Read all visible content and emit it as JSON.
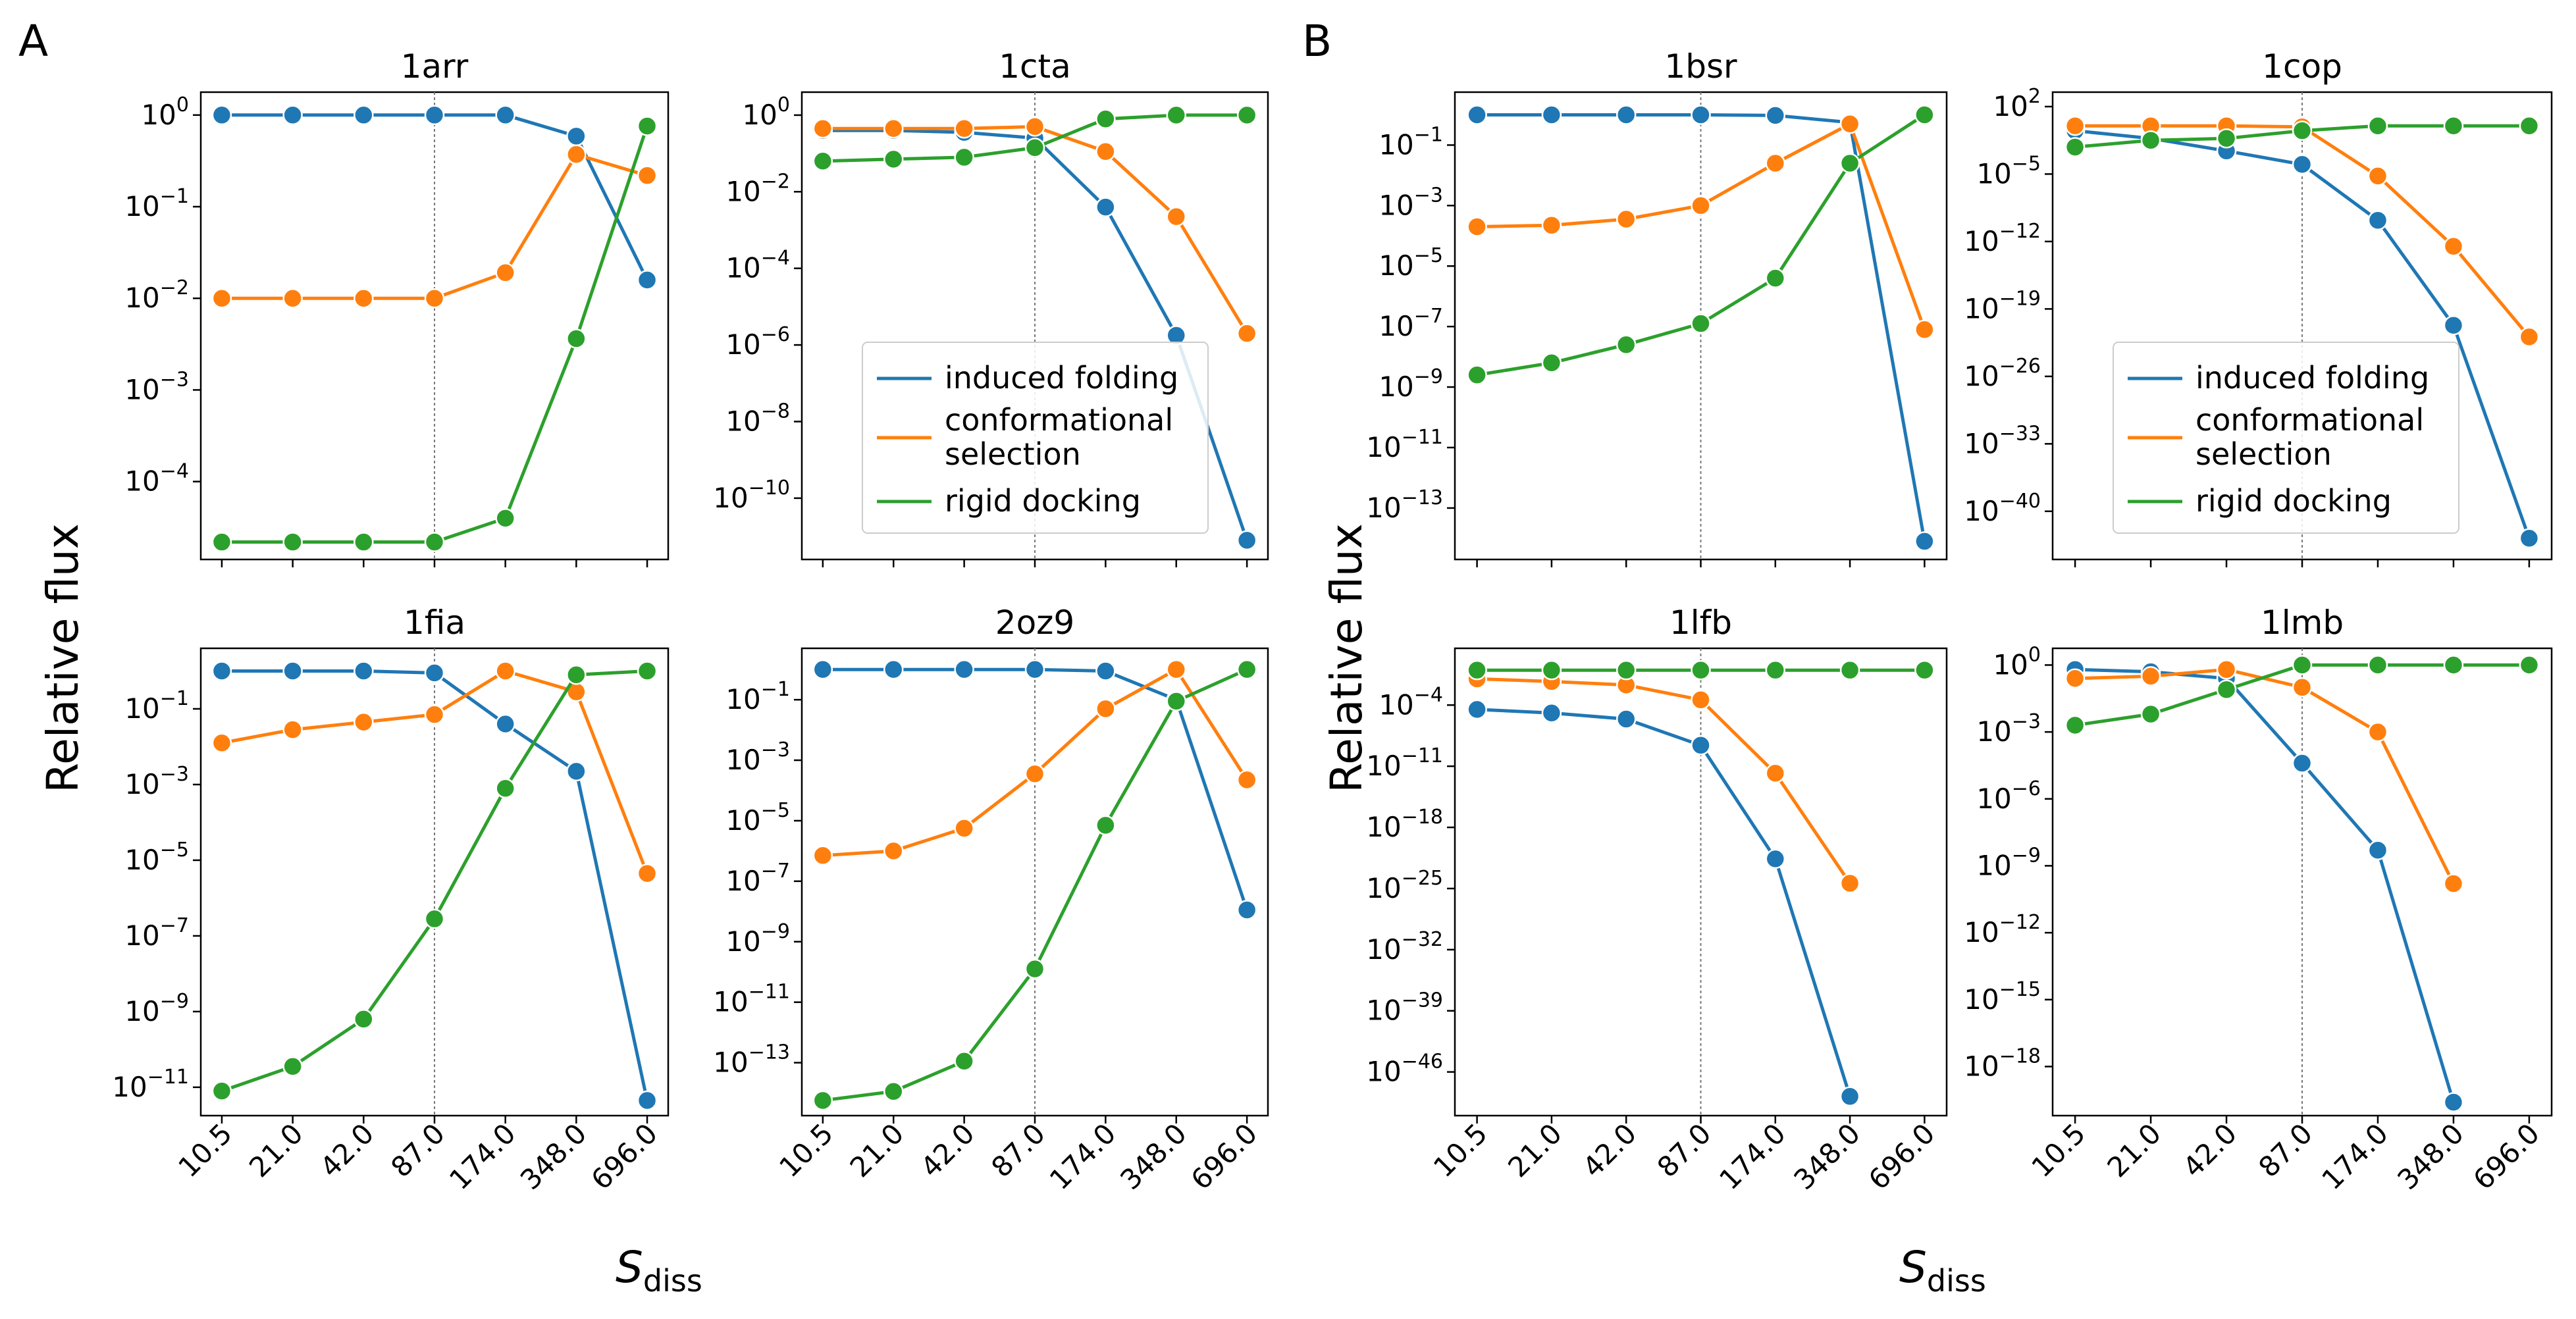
{
  "figure": {
    "panel_labels": [
      "A",
      "B"
    ],
    "ylabel": "Relative flux",
    "xlabel_main": "S",
    "xlabel_sub": "diss",
    "x_ticks": [
      "10.5",
      "21.0",
      "42.0",
      "87.0",
      "174.0",
      "348.0",
      "696.0"
    ],
    "colors": {
      "induced folding": "#1f77b4",
      "conformational selection": "#ff7f0e",
      "rigid docking": "#2ca02c"
    }
  },
  "chart_data": [
    {
      "type": "line",
      "title": "1arr",
      "yscale": "log",
      "ylim_log10": [
        -4.85,
        0.25
      ],
      "yticks_log10": [
        -4,
        -3,
        -2,
        -1,
        0
      ],
      "reference_line_x": "87.0",
      "x": [
        "10.5",
        "21.0",
        "42.0",
        "87.0",
        "174.0",
        "348.0",
        "696.0"
      ],
      "series": [
        {
          "name": "induced folding",
          "log10_values": [
            0,
            0,
            0,
            0,
            0,
            -0.23,
            -1.8
          ]
        },
        {
          "name": "conformational selection",
          "log10_values": [
            -2,
            -2,
            -2,
            -2,
            -1.72,
            -0.43,
            -0.66
          ]
        },
        {
          "name": "rigid docking",
          "log10_values": [
            -4.66,
            -4.66,
            -4.66,
            -4.66,
            -4.4,
            -2.44,
            -0.12
          ]
        }
      ]
    },
    {
      "type": "line",
      "title": "1cta",
      "yscale": "log",
      "ylim_log10": [
        -11.6,
        0.6
      ],
      "yticks_log10": [
        -10,
        -8,
        -6,
        -4,
        -2,
        0
      ],
      "reference_line_x": "87.0",
      "legend": {
        "position": "lower-left",
        "entries": [
          "induced folding",
          "conformational\nselection",
          "rigid docking"
        ]
      },
      "x": [
        "10.5",
        "21.0",
        "42.0",
        "87.0",
        "174.0",
        "348.0",
        "696.0"
      ],
      "series": [
        {
          "name": "induced folding",
          "log10_values": [
            -0.4,
            -0.4,
            -0.45,
            -0.6,
            -2.4,
            -5.75,
            -11.1
          ]
        },
        {
          "name": "conformational selection",
          "log10_values": [
            -0.35,
            -0.35,
            -0.35,
            -0.3,
            -0.95,
            -2.65,
            -5.7
          ]
        },
        {
          "name": "rigid docking",
          "log10_values": [
            -1.2,
            -1.15,
            -1.1,
            -0.85,
            -0.1,
            0,
            0
          ]
        }
      ]
    },
    {
      "type": "line",
      "title": "1fia",
      "yscale": "log",
      "ylim_log10": [
        -11.75,
        0.6
      ],
      "yticks_log10": [
        -11,
        -9,
        -7,
        -5,
        -3,
        -1
      ],
      "reference_line_x": "87.0",
      "x": [
        "10.5",
        "21.0",
        "42.0",
        "87.0",
        "174.0",
        "348.0",
        "696.0"
      ],
      "series": [
        {
          "name": "induced folding",
          "log10_values": [
            0,
            0,
            0,
            -0.05,
            -1.4,
            -2.65,
            -11.35
          ]
        },
        {
          "name": "conformational selection",
          "log10_values": [
            -1.9,
            -1.55,
            -1.35,
            -1.15,
            0,
            -0.55,
            -5.35
          ]
        },
        {
          "name": "rigid docking",
          "log10_values": [
            -11.1,
            -10.45,
            -9.2,
            -6.55,
            -3.1,
            -0.1,
            0
          ]
        }
      ]
    },
    {
      "type": "line",
      "title": "2oz9",
      "yscale": "log",
      "ylim_log10": [
        -14.75,
        0.7
      ],
      "yticks_log10": [
        -13,
        -11,
        -9,
        -7,
        -5,
        -3,
        -1
      ],
      "reference_line_x": "87.0",
      "x": [
        "10.5",
        "21.0",
        "42.0",
        "87.0",
        "174.0",
        "348.0",
        "696.0"
      ],
      "series": [
        {
          "name": "induced folding",
          "log10_values": [
            0,
            0,
            0,
            0,
            -0.05,
            -1.0,
            -7.95
          ]
        },
        {
          "name": "conformational selection",
          "log10_values": [
            -6.15,
            -6.0,
            -5.25,
            -3.45,
            -1.3,
            0,
            -3.65
          ]
        },
        {
          "name": "rigid docking",
          "log10_values": [
            -14.25,
            -13.95,
            -12.95,
            -9.9,
            -5.15,
            -1.05,
            0
          ]
        }
      ]
    },
    {
      "type": "line",
      "title": "1bsr",
      "yscale": "log",
      "ylim_log10": [
        -14.7,
        0.75
      ],
      "yticks_log10": [
        -13,
        -11,
        -9,
        -7,
        -5,
        -3,
        -1
      ],
      "reference_line_x": "87.0",
      "x": [
        "10.5",
        "21.0",
        "42.0",
        "87.0",
        "174.0",
        "348.0",
        "696.0"
      ],
      "series": [
        {
          "name": "induced folding",
          "log10_values": [
            0,
            0,
            0,
            0,
            -0.02,
            -0.25,
            -14.1
          ]
        },
        {
          "name": "conformational selection",
          "log10_values": [
            -3.7,
            -3.65,
            -3.45,
            -3.0,
            -1.6,
            -0.3,
            -7.1
          ]
        },
        {
          "name": "rigid docking",
          "log10_values": [
            -8.6,
            -8.2,
            -7.6,
            -6.9,
            -5.4,
            -1.6,
            0
          ]
        }
      ]
    },
    {
      "type": "line",
      "title": "1cop",
      "yscale": "log",
      "ylim_log10": [
        -45,
        3.5
      ],
      "yticks_log10": [
        -40,
        -33,
        -26,
        -19,
        -12,
        -5,
        2
      ],
      "reference_line_x": "87.0",
      "legend": {
        "position": "lower-left",
        "entries": [
          "induced folding",
          "conformational\nselection",
          "rigid docking"
        ]
      },
      "x": [
        "10.5",
        "21.0",
        "42.0",
        "87.0",
        "174.0",
        "348.0",
        "696.0"
      ],
      "series": [
        {
          "name": "induced folding",
          "log10_values": [
            -0.5,
            -1.3,
            -2.6,
            -4.0,
            -9.8,
            -20.7,
            -42.8
          ]
        },
        {
          "name": "conformational selection",
          "log10_values": [
            0,
            0,
            0,
            -0.1,
            -5.2,
            -12.5,
            -21.9
          ]
        },
        {
          "name": "rigid docking",
          "log10_values": [
            -2.2,
            -1.5,
            -1.3,
            -0.5,
            0,
            0,
            0
          ]
        }
      ]
    },
    {
      "type": "line",
      "title": "1lfb",
      "yscale": "log",
      "ylim_log10": [
        -51,
        2.5
      ],
      "yticks_log10": [
        -46,
        -39,
        -32,
        -25,
        -18,
        -11,
        -4
      ],
      "reference_line_x": "87.0",
      "x": [
        "10.5",
        "21.0",
        "42.0",
        "87.0",
        "174.0",
        "348.0",
        "696.0"
      ],
      "series": [
        {
          "name": "induced folding",
          "log10_values": [
            -4.5,
            -4.9,
            -5.6,
            -8.6,
            -21.6,
            -48.8,
            null
          ]
        },
        {
          "name": "conformational selection",
          "log10_values": [
            -1.0,
            -1.3,
            -1.7,
            -3.4,
            -11.8,
            -24.4,
            null
          ]
        },
        {
          "name": "rigid docking",
          "log10_values": [
            0,
            0,
            0,
            0,
            0,
            0,
            0
          ]
        }
      ]
    },
    {
      "type": "line",
      "title": "1lmb",
      "yscale": "log",
      "ylim_log10": [
        -20.2,
        0.75
      ],
      "yticks_log10": [
        -18,
        -15,
        -12,
        -9,
        -6,
        -3,
        0
      ],
      "reference_line_x": "87.0",
      "x": [
        "10.5",
        "21.0",
        "42.0",
        "87.0",
        "174.0",
        "348.0",
        "696.0"
      ],
      "series": [
        {
          "name": "induced folding",
          "log10_values": [
            -0.2,
            -0.3,
            -0.6,
            -4.4,
            -8.3,
            -19.6,
            null
          ]
        },
        {
          "name": "conformational selection",
          "log10_values": [
            -0.6,
            -0.5,
            -0.2,
            -1.0,
            -3.0,
            -9.8,
            null
          ]
        },
        {
          "name": "rigid docking",
          "log10_values": [
            -2.7,
            -2.2,
            -1.1,
            0,
            0,
            0,
            0
          ]
        }
      ]
    }
  ]
}
